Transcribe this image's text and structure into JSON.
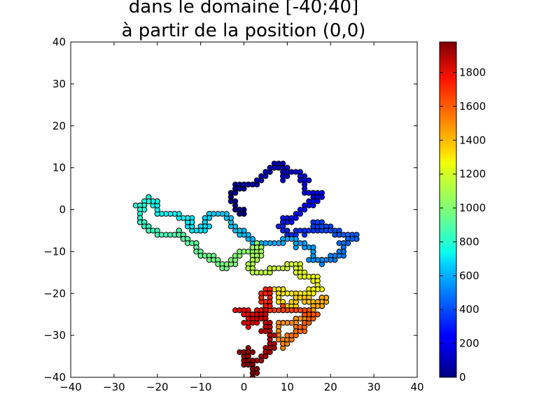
{
  "chart_data": {
    "type": "scatter",
    "title_lines": [
      "dans le domaine [-40;40]",
      "à partir de la position (0,0)"
    ],
    "xlabel": "",
    "ylabel": "",
    "xlim": [
      -40,
      40
    ],
    "ylim": [
      -40,
      40
    ],
    "xticks": [
      -40,
      -30,
      -20,
      -10,
      0,
      10,
      20,
      30,
      40
    ],
    "yticks": [
      -40,
      -30,
      -20,
      -10,
      0,
      10,
      20,
      30,
      40
    ],
    "xtick_labels": [
      "−40",
      "−30",
      "−20",
      "−10",
      "0",
      "10",
      "20",
      "30",
      "40"
    ],
    "ytick_labels": [
      "−40",
      "−30",
      "−20",
      "−10",
      "0",
      "10",
      "20",
      "30",
      "40"
    ],
    "grid": false,
    "colormap": "jet",
    "colorbar": {
      "min": 0,
      "max": 1980,
      "ticks": [
        0,
        200,
        400,
        600,
        800,
        1000,
        1200,
        1400,
        1600,
        1800
      ],
      "tick_labels": [
        "0",
        "200",
        "400",
        "600",
        "800",
        "1000",
        "1200",
        "1400",
        "1600",
        "1800"
      ]
    },
    "color_variable": "step index",
    "points_note": "2D random walk; each point colored by its step index",
    "waypoints": [
      [
        0,
        0
      ],
      [
        0,
        -1
      ],
      [
        -1,
        0
      ],
      [
        -2,
        1
      ],
      [
        -3,
        3
      ],
      [
        -2,
        5
      ],
      [
        0,
        6
      ],
      [
        2,
        6
      ],
      [
        3,
        7
      ],
      [
        4,
        8
      ],
      [
        5,
        9
      ],
      [
        6,
        10
      ],
      [
        8,
        11
      ],
      [
        9,
        10
      ],
      [
        9,
        8
      ],
      [
        10,
        9
      ],
      [
        12,
        9
      ],
      [
        13,
        8
      ],
      [
        14,
        6
      ],
      [
        14,
        4
      ],
      [
        16,
        3
      ],
      [
        17,
        4
      ],
      [
        18,
        3
      ],
      [
        16,
        1
      ],
      [
        14,
        0
      ],
      [
        13,
        -1
      ],
      [
        11,
        -3
      ],
      [
        9,
        -2
      ],
      [
        9,
        -4
      ],
      [
        10,
        -6
      ],
      [
        12,
        -5
      ],
      [
        15,
        -5
      ],
      [
        17,
        -3
      ],
      [
        19,
        -5
      ],
      [
        22,
        -6
      ],
      [
        24,
        -6
      ],
      [
        26,
        -7
      ],
      [
        23,
        -9
      ],
      [
        22,
        -11
      ],
      [
        20,
        -12
      ],
      [
        18,
        -12
      ],
      [
        16,
        -11
      ],
      [
        16,
        -9
      ],
      [
        14,
        -8
      ],
      [
        12,
        -7
      ],
      [
        9,
        -8
      ],
      [
        6,
        -8
      ],
      [
        4,
        -8
      ],
      [
        1,
        -6
      ],
      [
        0,
        -5
      ],
      [
        -2,
        -5
      ],
      [
        -3,
        -3
      ],
      [
        -4,
        -1
      ],
      [
        -7,
        -1
      ],
      [
        -9,
        -3
      ],
      [
        -10,
        -5
      ],
      [
        -12,
        -4
      ],
      [
        -13,
        -2
      ],
      [
        -15,
        -1
      ],
      [
        -17,
        -1
      ],
      [
        -19,
        -1
      ],
      [
        -20,
        0
      ],
      [
        -20,
        2
      ],
      [
        -22,
        3
      ],
      [
        -23,
        1
      ],
      [
        -24,
        0
      ],
      [
        -24,
        -2
      ],
      [
        -23,
        -4
      ],
      [
        -22,
        -5
      ],
      [
        -20,
        -6
      ],
      [
        -17,
        -6
      ],
      [
        -15,
        -5
      ],
      [
        -14,
        -7
      ],
      [
        -13,
        -8
      ],
      [
        -12,
        -8
      ],
      [
        -11,
        -9
      ],
      [
        -10,
        -11
      ],
      [
        -9,
        -11
      ],
      [
        -7,
        -11
      ],
      [
        -6,
        -13
      ],
      [
        -5,
        -14
      ],
      [
        -4,
        -13
      ],
      [
        -3,
        -12
      ],
      [
        -2,
        -11
      ],
      [
        -1,
        -10
      ],
      [
        1,
        -10
      ],
      [
        2,
        -9
      ],
      [
        3,
        -8
      ],
      [
        4,
        -10
      ],
      [
        3,
        -12
      ],
      [
        2,
        -13
      ],
      [
        1,
        -14
      ],
      [
        2,
        -15
      ],
      [
        4,
        -15
      ],
      [
        6,
        -14
      ],
      [
        8,
        -14
      ],
      [
        10,
        -13
      ],
      [
        11,
        -13
      ],
      [
        13,
        -13
      ],
      [
        12,
        -15
      ],
      [
        13,
        -16
      ],
      [
        15,
        -16
      ],
      [
        16,
        -17
      ],
      [
        17,
        -18
      ],
      [
        17,
        -19
      ],
      [
        16,
        -20
      ],
      [
        14,
        -20
      ],
      [
        12,
        -20
      ],
      [
        10,
        -20
      ],
      [
        9,
        -19
      ],
      [
        8,
        -20
      ],
      [
        8,
        -22
      ],
      [
        9,
        -23
      ],
      [
        10,
        -23
      ],
      [
        12,
        -21
      ],
      [
        14,
        -21
      ],
      [
        15,
        -22
      ],
      [
        16,
        -23
      ],
      [
        19,
        -21
      ],
      [
        16,
        -24
      ],
      [
        14,
        -26
      ],
      [
        12,
        -27
      ],
      [
        10,
        -27
      ],
      [
        8,
        -28
      ],
      [
        8,
        -30
      ],
      [
        9,
        -32
      ],
      [
        10,
        -31
      ],
      [
        11,
        -30
      ],
      [
        12,
        -29
      ],
      [
        13,
        -28
      ],
      [
        14,
        -27
      ],
      [
        15,
        -26
      ],
      [
        16,
        -25
      ],
      [
        17,
        -25
      ],
      [
        14,
        -24
      ],
      [
        12,
        -24
      ],
      [
        10,
        -24
      ],
      [
        8,
        -24
      ],
      [
        6,
        -24
      ],
      [
        5,
        -23
      ],
      [
        4,
        -21
      ],
      [
        4,
        -20
      ],
      [
        5,
        -19
      ],
      [
        6,
        -21
      ],
      [
        5,
        -24
      ],
      [
        3,
        -25
      ],
      [
        1,
        -24
      ],
      [
        0,
        -24
      ],
      [
        -1,
        -24
      ],
      [
        0,
        -25
      ],
      [
        2,
        -26
      ],
      [
        3,
        -27
      ],
      [
        1,
        -27
      ],
      [
        0,
        -27
      ],
      [
        2,
        -25
      ],
      [
        3,
        -25
      ],
      [
        5,
        -24
      ],
      [
        5,
        -27
      ],
      [
        6,
        -30
      ],
      [
        6,
        -32
      ],
      [
        6,
        -34
      ],
      [
        5,
        -35
      ],
      [
        4,
        -36
      ],
      [
        2,
        -36
      ],
      [
        0,
        -36
      ],
      [
        0,
        -35
      ],
      [
        0,
        -34
      ],
      [
        1,
        -33
      ],
      [
        1,
        -35
      ],
      [
        1,
        -37
      ],
      [
        2,
        -38
      ],
      [
        3,
        -39
      ],
      [
        2,
        -40
      ]
    ]
  }
}
